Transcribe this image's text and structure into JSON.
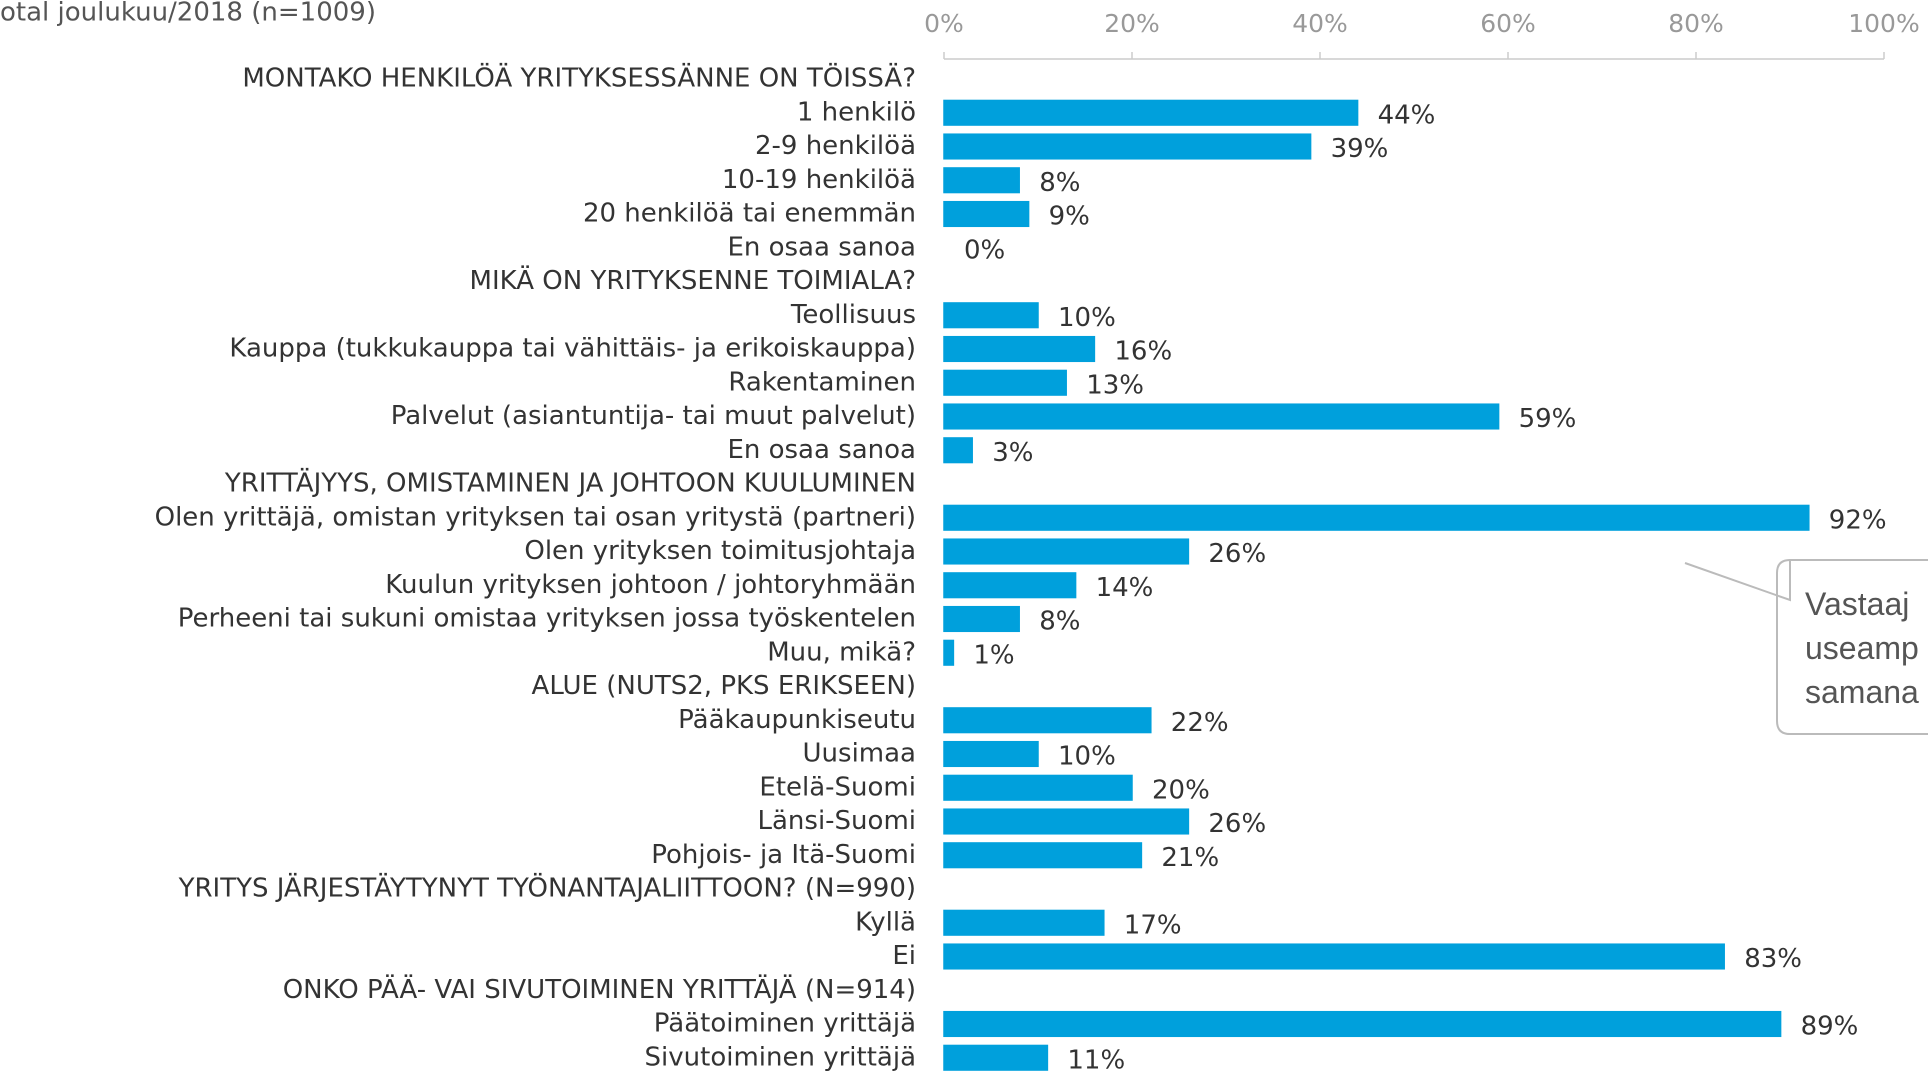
{
  "chart_data": {
    "type": "barh",
    "title": "otal joulukuu/2018 (n=1009)",
    "categories": [
      "MONTAKO HENKILÖÄ YRITYKSESSÄNNE ON TÖISSÄ?",
      "1 henkilö",
      "2-9 henkilöä",
      "10-19 henkilöä",
      "20 henkilöä tai enemmän",
      "En osaa sanoa",
      "MIKÄ ON YRITYKSENNE TOIMIALA?",
      "Teollisuus",
      "Kauppa (tukkukauppa tai vähittäis- ja erikoiskauppa)",
      "Rakentaminen",
      "Palvelut (asiantuntija- tai muut palvelut)",
      "En osaa sanoa",
      "YRITTÄJYYS, OMISTAMINEN JA JOHTOON KUULUMINEN",
      "Olen yrittäjä, omistan yrityksen tai osan yritystä (partneri)",
      "Olen yrityksen toimitusjohtaja",
      "Kuulun yrityksen johtoon / johtoryhmään",
      "Perheeni tai sukuni omistaa yrityksen jossa työskentelen",
      "Muu, mikä?",
      "ALUE (NUTS2, PKS ERIKSEEN)",
      "Pääkaupunkiseutu",
      "Uusimaa",
      "Etelä-Suomi",
      "Länsi-Suomi",
      "Pohjois- ja Itä-Suomi",
      "YRITYS JÄRJESTÄYTYNYT TYÖNANTAJALIITTOON? (N=990)",
      "Kyllä",
      "Ei",
      "ONKO PÄÄ- VAI SIVUTOIMINEN YRITTÄJÄ (N=914)",
      "Päätoiminen yrittäjä",
      "Sivutoiminen yrittäjä"
    ],
    "values": [
      null,
      44,
      39,
      8,
      9,
      0,
      null,
      10,
      16,
      13,
      59,
      3,
      null,
      92,
      26,
      14,
      8,
      1,
      null,
      22,
      10,
      20,
      26,
      21,
      null,
      17,
      83,
      null,
      89,
      11
    ],
    "value_labels": [
      null,
      "44%",
      "39%",
      "8%",
      "9%",
      "0%",
      null,
      "10%",
      "16%",
      "13%",
      "59%",
      "3%",
      null,
      "92%",
      "26%",
      "14%",
      "8%",
      "1%",
      null,
      "22%",
      "10%",
      "20%",
      "26%",
      "21%",
      null,
      "17%",
      "83%",
      null,
      "89%",
      "11%"
    ],
    "color": "#00a0dc",
    "xlim": [
      0,
      100
    ],
    "xticks": [
      {
        "value": 0,
        "label": "0%"
      },
      {
        "value": 20,
        "label": "20%"
      },
      {
        "value": 40,
        "label": "40%"
      },
      {
        "value": 60,
        "label": "60%"
      },
      {
        "value": 80,
        "label": "80%"
      },
      {
        "value": 100,
        "label": "100%"
      }
    ],
    "annotation": [
      "Vastaaj",
      "useamp",
      "samana"
    ]
  }
}
